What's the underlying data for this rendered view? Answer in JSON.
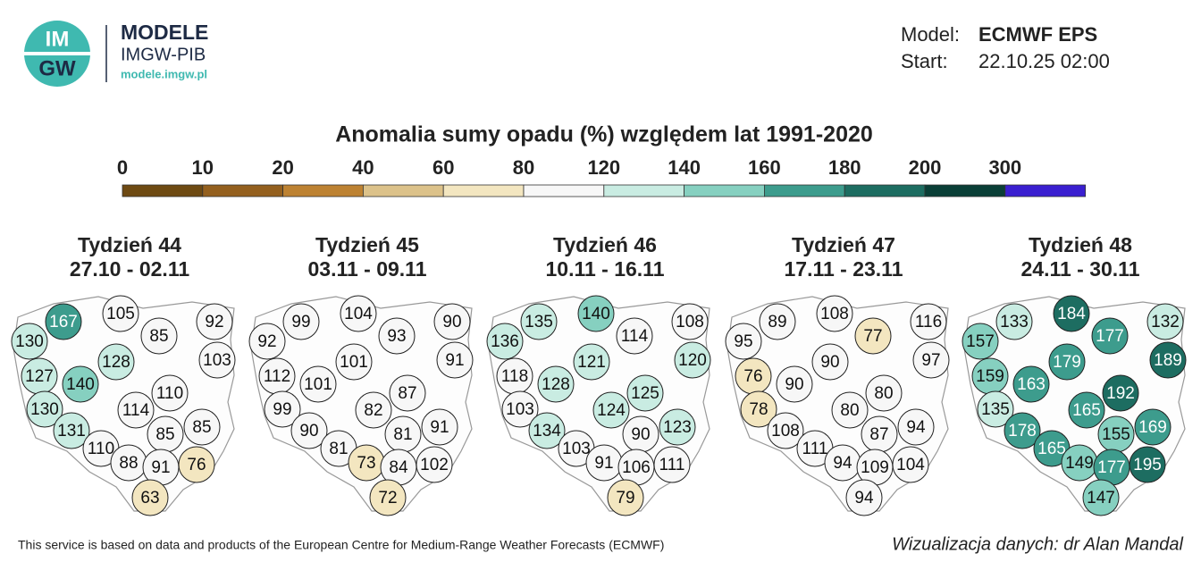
{
  "header": {
    "logo_text": [
      "IM",
      "GW"
    ],
    "brand": "MODELE",
    "org": "IMGW-PIB",
    "url": "modele.imgw.pl",
    "model_label": "Model:",
    "model": "ECMWF EPS",
    "start_label": "Start:",
    "start": "22.10.25 02:00"
  },
  "title": "Anomalia sumy opadu (%) względem lat 1991-2020",
  "legend": {
    "ticks": [
      0,
      10,
      20,
      40,
      60,
      80,
      120,
      140,
      160,
      180,
      200,
      300
    ],
    "colors": [
      "#6e4a12",
      "#94601e",
      "#bd8232",
      "#dcc28a",
      "#f3e6c0",
      "#f7f7f7",
      "#c9ece2",
      "#86d0c0",
      "#3d9c8d",
      "#1d6d61",
      "#0a3f37",
      "#3a1fd0"
    ]
  },
  "maps": [
    {
      "title": "Tydzień 44",
      "dates": "27.10 - 02.11",
      "values": [
        167,
        105,
        92,
        85,
        130,
        103,
        128,
        127,
        140,
        110,
        130,
        114,
        131,
        85,
        85,
        110,
        88,
        91,
        76,
        63
      ]
    },
    {
      "title": "Tydzień 45",
      "dates": "03.11 - 09.11",
      "values": [
        99,
        104,
        90,
        93,
        92,
        91,
        101,
        112,
        101,
        87,
        99,
        82,
        90,
        81,
        91,
        81,
        73,
        84,
        102,
        72
      ]
    },
    {
      "title": "Tydzień 46",
      "dates": "10.11 - 16.11",
      "values": [
        135,
        140,
        108,
        114,
        136,
        120,
        121,
        118,
        128,
        125,
        103,
        124,
        134,
        90,
        123,
        103,
        91,
        106,
        111,
        79
      ]
    },
    {
      "title": "Tydzień 47",
      "dates": "17.11 - 23.11",
      "values": [
        89,
        108,
        116,
        77,
        95,
        97,
        90,
        76,
        90,
        80,
        78,
        80,
        108,
        87,
        94,
        111,
        94,
        109,
        104,
        94
      ]
    },
    {
      "title": "Tydzień 48",
      "dates": "24.11 - 30.11",
      "values": [
        133,
        184,
        132,
        177,
        157,
        189,
        179,
        159,
        163,
        192,
        135,
        165,
        178,
        155,
        169,
        165,
        149,
        177,
        195,
        147
      ]
    }
  ],
  "footer": {
    "source": "This service is based on data and products of the European Centre for Medium-Range Weather Forecasts (ECMWF)",
    "credit": "Wizualizacja danych: dr Alan Mandal"
  }
}
